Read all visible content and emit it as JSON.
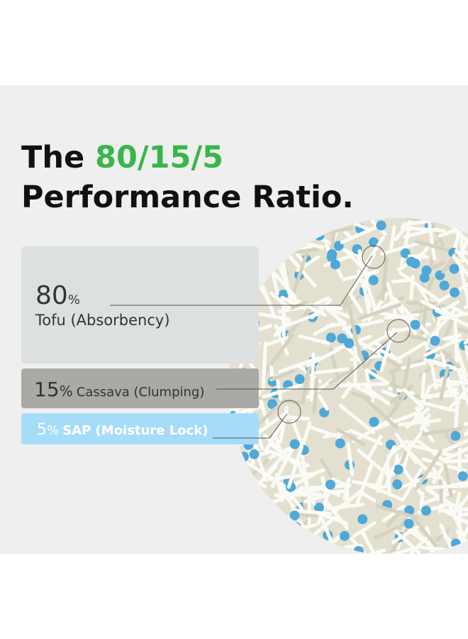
{
  "header": {
    "lead": "The",
    "highlight": "80/15/5",
    "line2": "Performance Ratio."
  },
  "items": [
    {
      "number": "80",
      "unit": "%",
      "label": "Tofu (Absorbency)"
    },
    {
      "number": "15",
      "unit": "%",
      "label": "Cassava (Clumping)"
    },
    {
      "number": "5",
      "unit": "%",
      "label": "SAP (Moisture Lock)"
    }
  ]
}
